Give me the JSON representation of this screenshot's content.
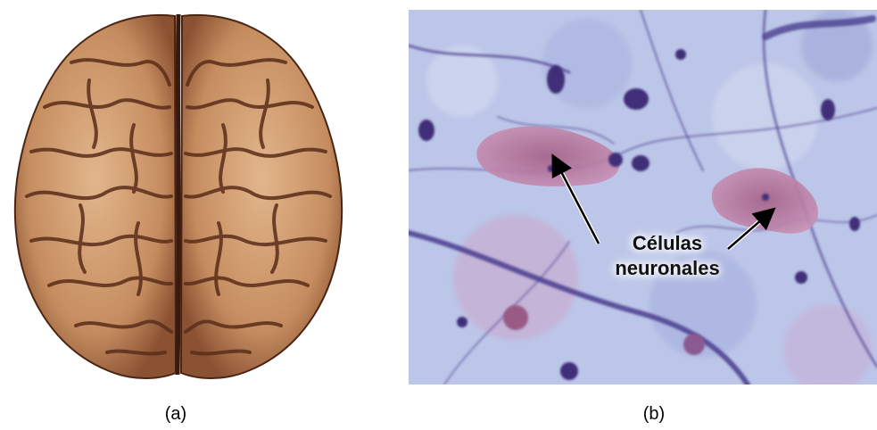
{
  "panels": [
    {
      "caption": "(a)",
      "image": "human-brain-top-view-photo"
    },
    {
      "caption": "(b)",
      "image": "stained-neural-tissue-micrograph",
      "annotation": {
        "line1": "Células",
        "line2": "neuronales"
      }
    }
  ],
  "colors": {
    "brain": "#c99066",
    "brain_shadow": "#5a2d1a",
    "tissue_bg": "#b9c3e6",
    "stain_purple": "#4b3d8f",
    "neuron_pink": "#b07098"
  }
}
